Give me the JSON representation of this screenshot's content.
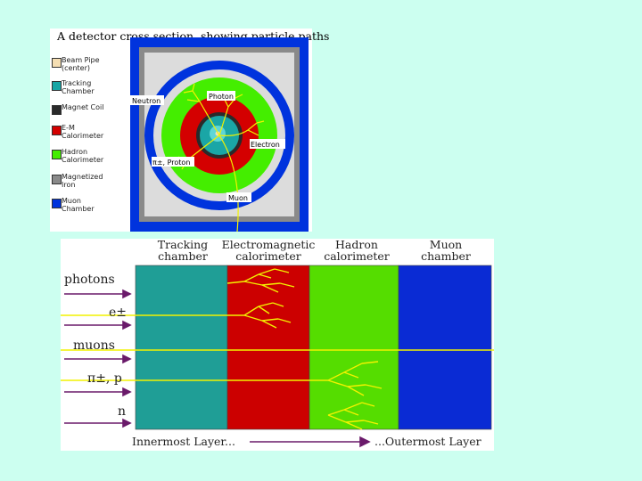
{
  "top": {
    "title": "A detector cross section, showing particle paths",
    "legend": [
      {
        "label": "Beam Pipe",
        "sub": "(center)",
        "color": "#f5deb3"
      },
      {
        "label": "Tracking",
        "sub": "Chamber",
        "color": "#1aa6a6"
      },
      {
        "label": "Magnet Coil",
        "sub": "",
        "color": "#2a2a2a"
      },
      {
        "label": "E-M",
        "sub": "Calorimeter",
        "color": "#d40000"
      },
      {
        "label": "Hadron",
        "sub": "Calorimeter",
        "color": "#44ee00"
      },
      {
        "label": "Magnetized",
        "sub": "Iron",
        "color": "#8a8a8a"
      },
      {
        "label": "Muon",
        "sub": "Chamber",
        "color": "#0033dd"
      }
    ],
    "particles": {
      "neutron": "Neutron",
      "photon": "Photon",
      "electron": "Electron",
      "pion": "π±, Proton",
      "muon": "Muon"
    }
  },
  "bottom": {
    "columns": [
      {
        "line1": "Tracking",
        "line2": "chamber",
        "color": "#1f9e96"
      },
      {
        "line1": "Electromagnetic",
        "line2": "calorimeter",
        "color": "#cc0000"
      },
      {
        "line1": "Hadron",
        "line2": "calorimeter",
        "color": "#55dd00"
      },
      {
        "line1": "Muon",
        "line2": "chamber",
        "color": "#0a2bd4"
      }
    ],
    "rows": [
      "photons",
      "e±",
      "muons",
      "π±, p",
      "n"
    ],
    "inner_label": "Innermost Layer...",
    "outer_label": "...Outermost Layer",
    "track_color": "#f2f200",
    "arrow_color": "#6a1a6a"
  }
}
